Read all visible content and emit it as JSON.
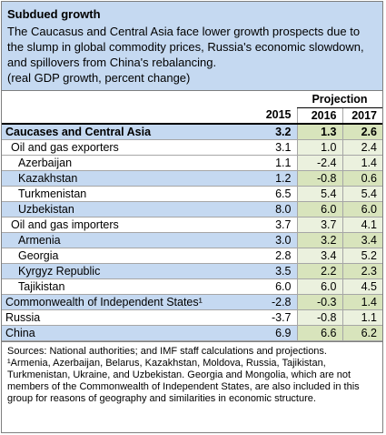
{
  "header": {
    "title": "Subdued growth",
    "subtitle": "The Caucasus and Central Asia face lower growth prospects due to the slump in global commodity prices, Russia's economic slowdown, and spillovers from China's rebalancing.",
    "note": "(real GDP growth, percent change)"
  },
  "table": {
    "projection_label": "Projection",
    "years": [
      "2015",
      "2016",
      "2017"
    ],
    "rows": [
      {
        "label": "Caucases and Central Asia",
        "values": [
          "3.2",
          "1.3",
          "2.6"
        ]
      },
      {
        "label": "Oil and gas exporters",
        "values": [
          "3.1",
          "1.0",
          "2.4"
        ]
      },
      {
        "label": "Azerbaijan",
        "values": [
          "1.1",
          "-2.4",
          "1.4"
        ]
      },
      {
        "label": "Kazakhstan",
        "values": [
          "1.2",
          "-0.8",
          "0.6"
        ]
      },
      {
        "label": "Turkmenistan",
        "values": [
          "6.5",
          "5.4",
          "5.4"
        ]
      },
      {
        "label": "Uzbekistan",
        "values": [
          "8.0",
          "6.0",
          "6.0"
        ]
      },
      {
        "label": "Oil and gas importers",
        "values": [
          "3.7",
          "3.7",
          "4.1"
        ]
      },
      {
        "label": "Armenia",
        "values": [
          "3.0",
          "3.2",
          "3.4"
        ]
      },
      {
        "label": "Georgia",
        "values": [
          "2.8",
          "3.4",
          "5.2"
        ]
      },
      {
        "label": "Kyrgyz Republic",
        "values": [
          "3.5",
          "2.2",
          "2.3"
        ]
      },
      {
        "label": "Tajikistan",
        "values": [
          "6.0",
          "6.0",
          "4.5"
        ]
      },
      {
        "label": "Commonwealth of Independent States¹",
        "values": [
          "-2.8",
          "-0.3",
          "1.4"
        ]
      },
      {
        "label": "Russia",
        "values": [
          "-3.7",
          "-0.8",
          "1.1"
        ]
      },
      {
        "label": "China",
        "values": [
          "6.9",
          "6.6",
          "6.2"
        ]
      }
    ]
  },
  "footer": {
    "sources": "Sources: National authorities; and IMF staff calculations and projections.",
    "footnote": "¹Armenia, Azerbaijan, Belarus, Kazakhstan, Moldova, Russia, Tajikistan, Turkmenistan, Ukraine, and Uzbekistan. Georgia and Mongolia, which are not members of the Commonwealth of Independent States, are also included in this group for reasons of geography and similarities in economic structure."
  }
}
